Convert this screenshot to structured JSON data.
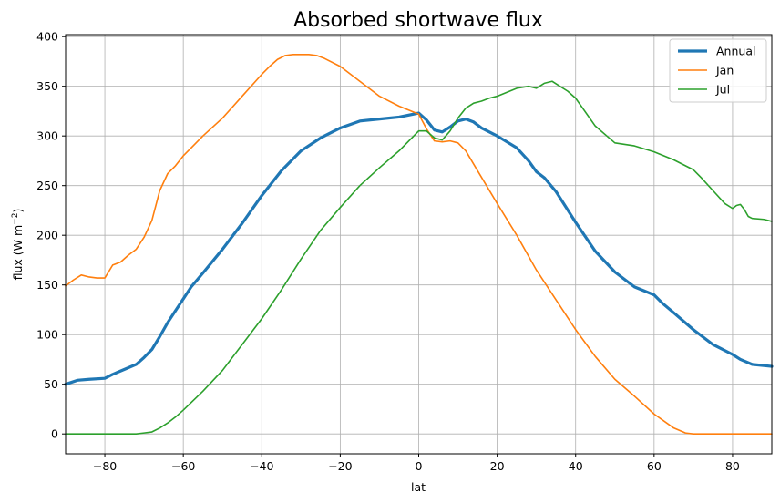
{
  "chart_data": {
    "type": "line",
    "title": "Absorbed shortwave flux",
    "xlabel": "lat",
    "ylabel_main": "flux (W m",
    "ylabel_sup": "−2",
    "ylabel_close": ")",
    "xlim": [
      -90,
      90
    ],
    "ylim": [
      -20,
      402
    ],
    "xticks": [
      -80,
      -60,
      -40,
      -20,
      0,
      20,
      40,
      60,
      80
    ],
    "xtick_labels": [
      "−80",
      "−60",
      "−40",
      "−20",
      "0",
      "20",
      "40",
      "60",
      "80"
    ],
    "yticks": [
      0,
      50,
      100,
      150,
      200,
      250,
      300,
      350,
      400
    ],
    "ytick_labels": [
      "0",
      "50",
      "100",
      "150",
      "200",
      "250",
      "300",
      "350",
      "400"
    ],
    "grid": true,
    "legend_position": "top-right",
    "series": [
      {
        "name": "Annual",
        "color": "#1f77b4",
        "x": [
          -90,
          -87,
          -84,
          -80,
          -78,
          -75,
          -72,
          -70,
          -68,
          -66,
          -64,
          -62,
          -60,
          -58,
          -55,
          -50,
          -45,
          -40,
          -35,
          -30,
          -25,
          -20,
          -15,
          -10,
          -5,
          0,
          2,
          4,
          6,
          8,
          10,
          12,
          14,
          16,
          20,
          25,
          28,
          30,
          32,
          35,
          40,
          45,
          50,
          55,
          60,
          62,
          65,
          70,
          75,
          80,
          82,
          85,
          90
        ],
        "y": [
          50,
          54,
          55,
          56,
          60,
          65,
          70,
          77,
          85,
          98,
          112,
          124,
          136,
          148,
          162,
          186,
          212,
          240,
          265,
          285,
          298,
          308,
          315,
          317,
          319,
          323,
          316,
          306,
          304,
          309,
          315,
          317,
          314,
          308,
          300,
          288,
          275,
          264,
          258,
          244,
          213,
          184,
          163,
          148,
          140,
          132,
          122,
          105,
          90,
          80,
          75,
          70,
          68
        ]
      },
      {
        "name": "Jan",
        "color": "#ff7f0e",
        "x": [
          -90,
          -88,
          -86,
          -84,
          -82,
          -80,
          -78,
          -76,
          -74,
          -72,
          -70,
          -68,
          -66,
          -64,
          -62,
          -60,
          -58,
          -55,
          -50,
          -45,
          -40,
          -38,
          -36,
          -34,
          -32,
          -30,
          -28,
          -26,
          -24,
          -20,
          -15,
          -10,
          -5,
          0,
          2,
          4,
          6,
          8,
          10,
          12,
          15,
          20,
          25,
          30,
          35,
          40,
          45,
          50,
          55,
          60,
          65,
          68,
          70,
          72,
          75,
          80,
          85,
          90
        ],
        "y": [
          149,
          155,
          160,
          158,
          157,
          157,
          170,
          173,
          180,
          186,
          198,
          215,
          245,
          262,
          270,
          280,
          288,
          300,
          318,
          340,
          362,
          370,
          377,
          381,
          382,
          382,
          382,
          381,
          378,
          370,
          355,
          340,
          330,
          322,
          307,
          295,
          294,
          295,
          293,
          285,
          265,
          232,
          200,
          165,
          135,
          105,
          78,
          55,
          38,
          20,
          6,
          1,
          0,
          0,
          0,
          0,
          0,
          0
        ]
      },
      {
        "name": "Jul",
        "color": "#2ca02c",
        "x": [
          -90,
          -80,
          -75,
          -72,
          -70,
          -68,
          -66,
          -64,
          -62,
          -60,
          -55,
          -50,
          -45,
          -40,
          -35,
          -30,
          -25,
          -20,
          -15,
          -10,
          -5,
          0,
          2,
          4,
          6,
          8,
          10,
          12,
          14,
          16,
          18,
          20,
          25,
          28,
          30,
          32,
          34,
          36,
          38,
          40,
          45,
          50,
          55,
          60,
          65,
          70,
          72,
          75,
          78,
          80,
          81,
          82,
          83,
          84,
          85,
          88,
          90
        ],
        "y": [
          0,
          0,
          0,
          0,
          1,
          2,
          6,
          11,
          17,
          24,
          43,
          64,
          90,
          116,
          145,
          176,
          205,
          228,
          250,
          268,
          285,
          305,
          305,
          298,
          296,
          305,
          318,
          328,
          333,
          335,
          338,
          340,
          348,
          350,
          348,
          353,
          355,
          350,
          345,
          338,
          310,
          293,
          290,
          284,
          276,
          266,
          258,
          245,
          232,
          227,
          230,
          231,
          226,
          219,
          217,
          216,
          214
        ]
      }
    ]
  }
}
